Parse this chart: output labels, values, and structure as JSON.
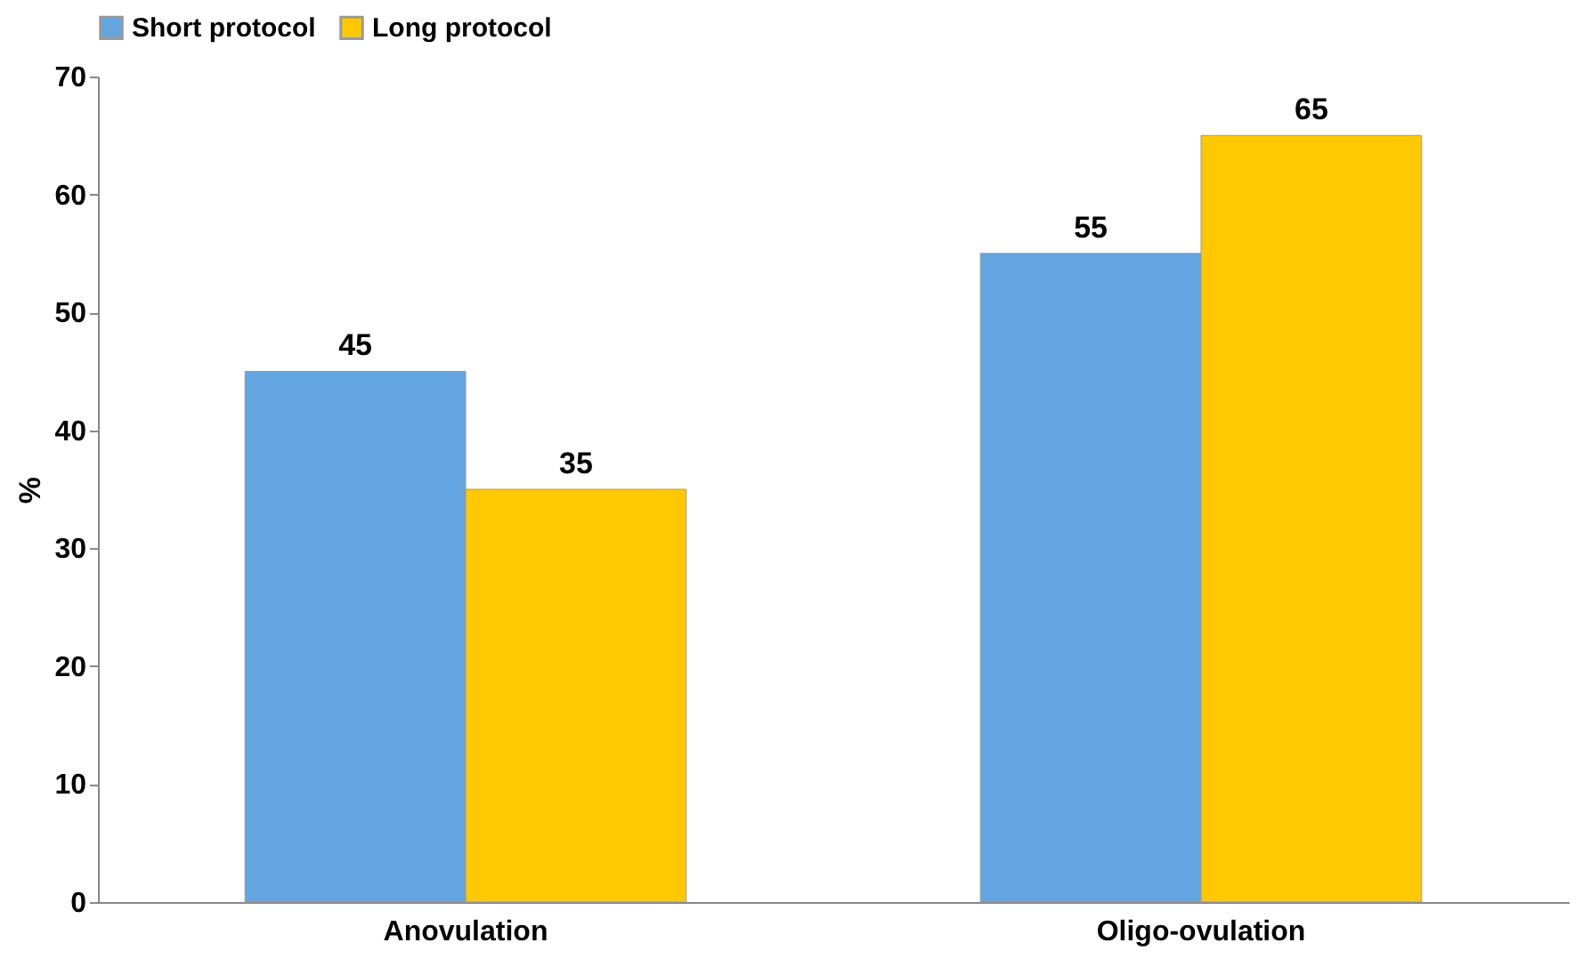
{
  "chart_data": {
    "type": "bar",
    "categories": [
      "Anovulation",
      "Oligo-ovulation"
    ],
    "series": [
      {
        "name": "Short protocol",
        "color": "#63a5e0",
        "values": [
          45,
          55
        ]
      },
      {
        "name": "Long protocol",
        "color": "#ffc800",
        "values": [
          35,
          65
        ]
      }
    ],
    "ylabel": "%",
    "ylim": [
      0,
      70
    ],
    "yticks": [
      0,
      10,
      20,
      30,
      40,
      50,
      60,
      70
    ],
    "grid": false,
    "legend": "top",
    "data_labels": true
  }
}
